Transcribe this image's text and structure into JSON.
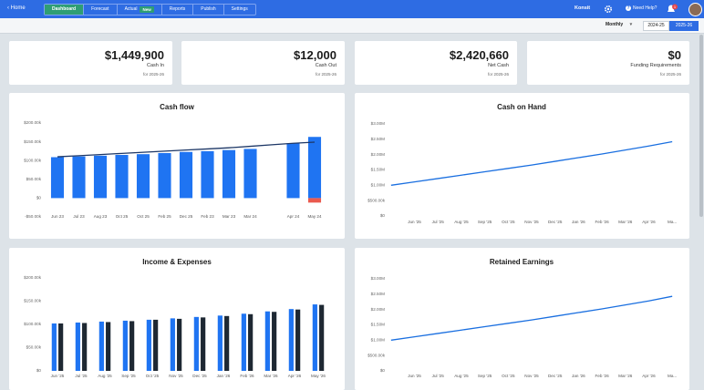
{
  "header": {
    "home": "Home",
    "tabs": [
      "Dashboard",
      "Forecast",
      "Actual",
      "Reports",
      "Publish",
      "Settings"
    ],
    "badge": "New",
    "company": "Konsit",
    "help": "Need Help?",
    "notifications": "1"
  },
  "toolbar": {
    "period": "Monthly",
    "years": [
      "2024-25",
      "2025-26"
    ]
  },
  "kpis": [
    {
      "value": "$1,449,900",
      "label": "Cash In",
      "note": "for 2025-26"
    },
    {
      "value": "$12,000",
      "label": "Cash Out",
      "note": "for 2025-26"
    },
    {
      "value": "$2,420,660",
      "label": "Net Cash",
      "note": "for 2025-26"
    },
    {
      "value": "$0",
      "label": "Funding Requirements",
      "note": "for 2025-26"
    }
  ],
  "chart_data": [
    {
      "type": "bar",
      "title": "Cash flow",
      "stacked": true,
      "categories": [
        "Jun 23",
        "Jul 23",
        "Aug 23",
        "Oct 25",
        "Oct 25",
        "Feb 25",
        "Dec 25",
        "Feb 23",
        "Mar 23",
        "Mar 24",
        null,
        "Apr 24",
        "May 24"
      ],
      "series": [
        {
          "color": "#1f74f2",
          "values": [
            109000,
            111000,
            113000,
            115000,
            117000,
            120000,
            123000,
            125000,
            128000,
            131000,
            null,
            146000,
            163000
          ]
        },
        {
          "color": "#ea5a4e",
          "values": [
            null,
            null,
            null,
            null,
            null,
            null,
            null,
            null,
            null,
            null,
            null,
            null,
            -12000
          ]
        },
        {
          "type": "line",
          "color": "#1d3766",
          "values": [
            110000,
            113000,
            116000,
            119000,
            122000,
            125000,
            128000,
            131000,
            134000,
            138000,
            142000,
            146000,
            149000
          ]
        }
      ],
      "ylim": [
        -50000,
        200000
      ],
      "yticks": [
        {
          "value": -50000,
          "label": "-$50.00k"
        },
        {
          "value": 0,
          "label": "$0"
        },
        {
          "value": 50000,
          "label": "$50.00k"
        },
        {
          "value": 100000,
          "label": "$100.00k"
        },
        {
          "value": 150000,
          "label": "$150.00k"
        },
        {
          "value": 200000,
          "label": "$200.00k"
        }
      ],
      "grid": false
    },
    {
      "type": "line",
      "title": "Cash on Hand",
      "categories": [
        null,
        "Jun '25",
        "Jul '25",
        "Aug '25",
        "Sep '25",
        "Oct '25",
        "Nov '25",
        "Dec '25",
        "Jan '26",
        "Feb '26",
        "Mar '26",
        "Apr '26",
        "Ma..."
      ],
      "series": [
        {
          "color": "#1a6fe0",
          "values": [
            1000000,
            1110000,
            1220000,
            1330000,
            1440000,
            1550000,
            1660000,
            1780000,
            1900000,
            2020000,
            2150000,
            2280000,
            2420000
          ]
        }
      ],
      "ylim": [
        0,
        3000000
      ],
      "yticks": [
        {
          "value": 0,
          "label": "$0"
        },
        {
          "value": 500000,
          "label": "$500.00k"
        },
        {
          "value": 1000000,
          "label": "$1.00M"
        },
        {
          "value": 1500000,
          "label": "$1.50M"
        },
        {
          "value": 2000000,
          "label": "$2.00M"
        },
        {
          "value": 2500000,
          "label": "$2.50M"
        },
        {
          "value": 3000000,
          "label": "$3.00M"
        }
      ],
      "grid": false
    },
    {
      "type": "bar",
      "title": "Income & Expenses",
      "stacked": false,
      "categories": [
        "Jun '25",
        "Jul '25",
        "Aug '25",
        "Sep '25",
        "Oct '25",
        "Nov '25",
        "Dec '25",
        "Jan '26",
        "Feb '26",
        "Mar '26",
        "Apr '26",
        "May '26"
      ],
      "series": [
        {
          "color": "#1f74f2",
          "values": [
            102000,
            104000,
            106000,
            108000,
            110000,
            113000,
            116000,
            119000,
            123000,
            128000,
            133000,
            143000
          ]
        },
        {
          "color": "#1e2833",
          "values": [
            102000,
            103000,
            105000,
            107000,
            110000,
            112000,
            115000,
            118000,
            122000,
            127000,
            132000,
            142000
          ]
        }
      ],
      "ylim": [
        0,
        200000
      ],
      "yticks": [
        {
          "value": 0,
          "label": "$0"
        },
        {
          "value": 50000,
          "label": "$50.00k"
        },
        {
          "value": 100000,
          "label": "$100.00k"
        },
        {
          "value": 150000,
          "label": "$150.00k"
        },
        {
          "value": 200000,
          "label": "$200.00k"
        }
      ],
      "grid": false
    },
    {
      "type": "line",
      "title": "Retained Earnings",
      "categories": [
        null,
        "Jun '25",
        "Jul '25",
        "Aug '25",
        "Sep '25",
        "Oct '25",
        "Nov '25",
        "Dec '25",
        "Jan '26",
        "Feb '26",
        "Mar '26",
        "Apr '26",
        "Ma..."
      ],
      "series": [
        {
          "color": "#1a6fe0",
          "values": [
            1000000,
            1110000,
            1220000,
            1330000,
            1440000,
            1550000,
            1660000,
            1780000,
            1900000,
            2020000,
            2150000,
            2280000,
            2430000
          ]
        }
      ],
      "ylim": [
        0,
        3000000
      ],
      "yticks": [
        {
          "value": 0,
          "label": "$0"
        },
        {
          "value": 500000,
          "label": "$500.00k"
        },
        {
          "value": 1000000,
          "label": "$1.00M"
        },
        {
          "value": 1500000,
          "label": "$1.50M"
        },
        {
          "value": 2000000,
          "label": "$2.00M"
        },
        {
          "value": 2500000,
          "label": "$2.50M"
        },
        {
          "value": 3000000,
          "label": "$3.00M"
        }
      ],
      "grid": false
    }
  ]
}
